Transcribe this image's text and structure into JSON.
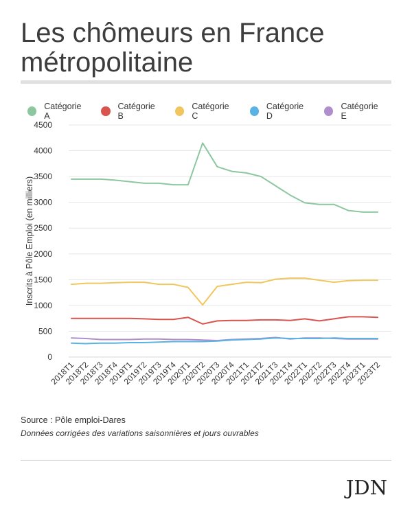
{
  "title": "Les chômeurs en France métropolitaine",
  "source": "Source : Pôle emploi-Dares",
  "note": "Données corrigées des variations saisonnières et jours ouvrables",
  "logo": "JDN",
  "chart_data": {
    "type": "line",
    "title": "Les chômeurs en France métropolitaine",
    "xlabel": "",
    "ylabel": "Inscrits à Pôle Emploi (en milliers)",
    "ylim": [
      0,
      4500
    ],
    "yticks": [
      0,
      500,
      1000,
      1500,
      2000,
      2500,
      3000,
      3500,
      4000,
      4500
    ],
    "grid": true,
    "legend_position": "top",
    "categories": [
      "2018T1",
      "2018T2",
      "2018T3",
      "2018T4",
      "2019T1",
      "2019T2",
      "2019T3",
      "2019T4",
      "2020T1",
      "2020T2",
      "2020T3",
      "2020T4",
      "2021T1",
      "2021T2",
      "2021T3",
      "2021T4",
      "2022T1",
      "2022T2",
      "2022T3",
      "2022T4",
      "2023T1",
      "2023T2"
    ],
    "series": [
      {
        "name": "Catégorie A",
        "color": "#8cc7a0",
        "values": [
          3450,
          3450,
          3450,
          3430,
          3400,
          3370,
          3370,
          3340,
          3340,
          4150,
          3690,
          3600,
          3570,
          3500,
          3320,
          3140,
          2990,
          2960,
          2960,
          2840,
          2810,
          2810
        ]
      },
      {
        "name": "Catégorie B",
        "color": "#d9534f",
        "values": [
          750,
          750,
          750,
          750,
          750,
          740,
          730,
          730,
          770,
          640,
          700,
          710,
          710,
          720,
          720,
          710,
          740,
          700,
          740,
          780,
          780,
          770
        ]
      },
      {
        "name": "Catégorie C",
        "color": "#f0c75e",
        "values": [
          1410,
          1430,
          1430,
          1440,
          1450,
          1450,
          1410,
          1410,
          1350,
          1010,
          1370,
          1410,
          1450,
          1440,
          1510,
          1530,
          1530,
          1490,
          1450,
          1480,
          1490,
          1490
        ]
      },
      {
        "name": "Catégorie D",
        "color": "#5bb3e3",
        "values": [
          270,
          260,
          270,
          270,
          280,
          280,
          290,
          300,
          300,
          300,
          310,
          330,
          340,
          350,
          370,
          360,
          360,
          360,
          370,
          360,
          360,
          360
        ]
      },
      {
        "name": "Catégorie E",
        "color": "#b08ecb",
        "values": [
          370,
          360,
          340,
          340,
          340,
          350,
          350,
          340,
          340,
          330,
          320,
          340,
          350,
          360,
          380,
          350,
          370,
          370,
          360,
          350,
          350,
          350
        ]
      }
    ]
  }
}
